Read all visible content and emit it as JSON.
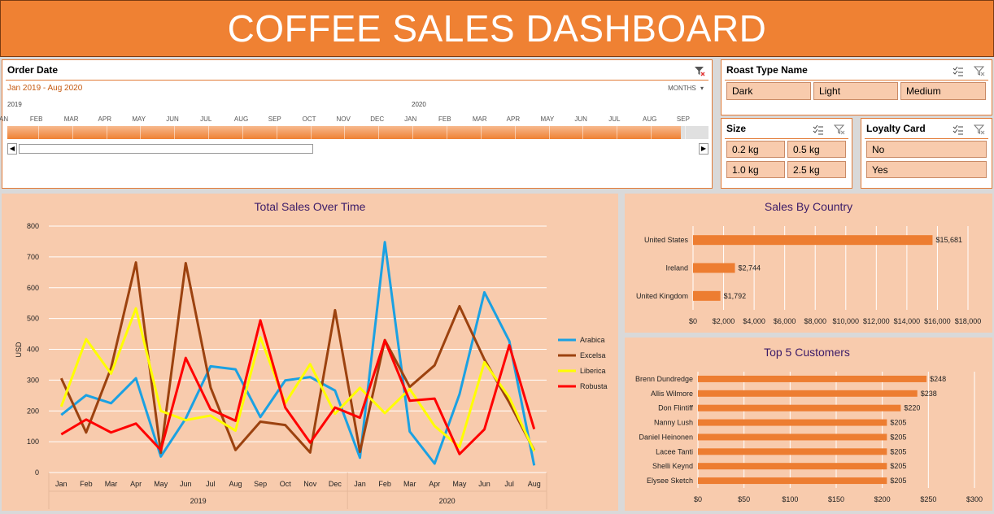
{
  "title": "COFFEE SALES DASHBOARD",
  "order_date": {
    "header": "Order  Date",
    "range": "Jan 2019 - Aug 2020",
    "period_select": "MONTHS",
    "years": [
      "2019",
      "2020"
    ],
    "months": [
      "JAN",
      "FEB",
      "MAR",
      "APR",
      "MAY",
      "JUN",
      "JUL",
      "AUG",
      "SEP",
      "OCT",
      "NOV",
      "DEC",
      "JAN",
      "FEB",
      "MAR",
      "APR",
      "MAY",
      "JUN",
      "JUL",
      "AUG",
      "SEP"
    ],
    "selected_fraction": 0.96
  },
  "roast": {
    "header": "Roast Type Name",
    "items": [
      "Dark",
      "Light",
      "Medium"
    ]
  },
  "size": {
    "header": "Size",
    "items": [
      "0.2 kg",
      "0.5 kg",
      "1.0 kg",
      "2.5 kg"
    ]
  },
  "loyalty": {
    "header": "Loyalty Card",
    "items": [
      "No",
      "Yes"
    ]
  },
  "colors": {
    "accent": "#ef8133",
    "panel": "#f8cbad",
    "arabica": "#1ba1e2",
    "excelsa": "#9c420f",
    "liberica": "#ffff00",
    "robusta": "#ff0000",
    "bar": "#ed7d31"
  },
  "chart_data": [
    {
      "type": "line",
      "title": "Total Sales Over Time",
      "ylabel": "USD",
      "ylim": [
        0,
        800
      ],
      "yticks": [
        0,
        100,
        200,
        300,
        400,
        500,
        600,
        700,
        800
      ],
      "categories": [
        "Jan",
        "Feb",
        "Mar",
        "Apr",
        "May",
        "Jun",
        "Jul",
        "Aug",
        "Sep",
        "Oct",
        "Nov",
        "Dec",
        "Jan",
        "Feb",
        "Mar",
        "Apr",
        "May",
        "Jun",
        "Jul",
        "Aug"
      ],
      "groups": [
        {
          "label": "2019",
          "count": 12
        },
        {
          "label": "2020",
          "count": 8
        }
      ],
      "legend": "right",
      "series": [
        {
          "name": "Arabica",
          "values": [
            187,
            251,
            225,
            306,
            52,
            175,
            345,
            335,
            180,
            299,
            310,
            266,
            48,
            748,
            133,
            29,
            254,
            585,
            427,
            23
          ]
        },
        {
          "name": "Excelsa",
          "values": [
            306,
            130,
            339,
            682,
            64,
            680,
            276,
            73,
            165,
            154,
            65,
            527,
            67,
            430,
            278,
            348,
            540,
            367,
            227,
            72
          ]
        },
        {
          "name": "Liberica",
          "values": [
            214,
            433,
            321,
            533,
            200,
            170,
            185,
            136,
            439,
            225,
            352,
            191,
            275,
            193,
            271,
            151,
            83,
            358,
            244,
            69
          ]
        },
        {
          "name": "Robusta",
          "values": [
            124,
            172,
            130,
            159,
            73,
            372,
            205,
            168,
            494,
            211,
            97,
            211,
            178,
            429,
            233,
            240,
            60,
            140,
            413,
            141
          ]
        }
      ]
    },
    {
      "type": "bar",
      "title": "Sales By Country",
      "orientation": "horizontal",
      "categories": [
        "United States",
        "Ireland",
        "United Kingdom"
      ],
      "values": [
        15681,
        2744,
        1792
      ],
      "labels": [
        "$15,681",
        "$2,744",
        "$1,792"
      ],
      "xlim": [
        0,
        18000
      ],
      "xticks": [
        "$0",
        "$2,000",
        "$4,000",
        "$6,000",
        "$8,000",
        "$10,000",
        "$12,000",
        "$14,000",
        "$16,000",
        "$18,000"
      ]
    },
    {
      "type": "bar",
      "title": "Top 5 Customers",
      "orientation": "horizontal",
      "categories": [
        "Brenn Dundredge",
        "Allis Wilmore",
        "Don Flintiff",
        "Nanny Lush",
        "Daniel Heinonen",
        "Lacee Tanti",
        "Shelli Keynd",
        "Elysee Sketch"
      ],
      "values": [
        248,
        238,
        220,
        205,
        205,
        205,
        205,
        205
      ],
      "labels": [
        "$248",
        "$238",
        "$220",
        "$205",
        "$205",
        "$205",
        "$205",
        "$205"
      ],
      "xlim": [
        0,
        300
      ],
      "xticks": [
        "$0",
        "$50",
        "$100",
        "$150",
        "$200",
        "$250",
        "$300"
      ]
    }
  ]
}
